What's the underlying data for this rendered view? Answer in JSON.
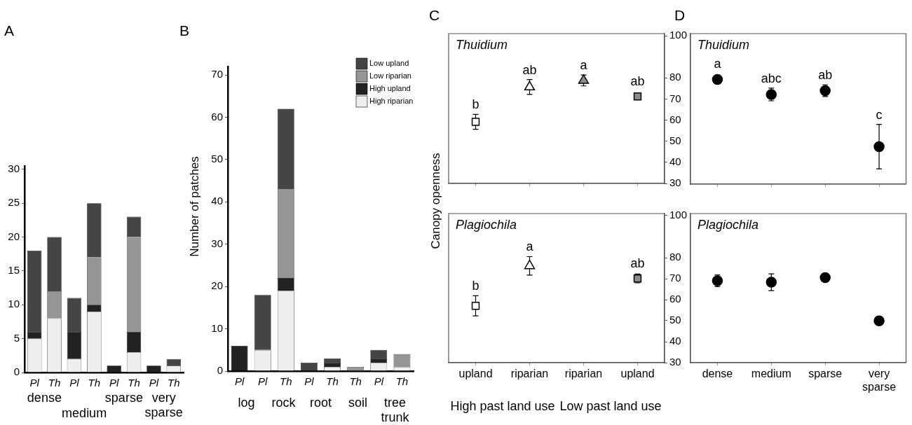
{
  "chart_data": [
    {
      "type": "bar",
      "title": "A",
      "stacked": true,
      "categories": [
        "Pl",
        "Th",
        "Pl",
        "Th",
        "Pl",
        "Th",
        "Pl",
        "Th"
      ],
      "series": [
        {
          "color": "#eeeeee",
          "values": [
            5,
            8,
            2,
            9,
            0,
            3,
            0,
            1
          ]
        },
        {
          "color": "#222222",
          "values": [
            1,
            0,
            4,
            1,
            1,
            3,
            1,
            0
          ]
        },
        {
          "color": "#959595",
          "values": [
            0,
            4,
            0,
            7,
            0,
            14,
            0,
            0
          ]
        },
        {
          "color": "#454545",
          "values": [
            12,
            8,
            5,
            8,
            0,
            3,
            0,
            1
          ]
        }
      ],
      "ylim": [
        0,
        30.5
      ],
      "yticks": [
        0,
        5,
        10,
        15,
        20,
        25,
        30
      ],
      "annotations": [
        "dense",
        "medium",
        "sparse",
        "very sparse"
      ]
    },
    {
      "type": "bar",
      "title": "B",
      "ylabel": "Number of patches",
      "stacked": true,
      "categories": [
        "Pl",
        "Pl",
        "Th",
        "Pl",
        "Th",
        "Th",
        "Pl",
        "Th"
      ],
      "series": [
        {
          "name": "High riparian",
          "color": "#eeeeee",
          "values": [
            0,
            5,
            19,
            0,
            1,
            0,
            2,
            1
          ]
        },
        {
          "name": "High upland",
          "color": "#222222",
          "values": [
            6,
            0,
            3,
            0,
            1,
            0,
            1,
            0
          ]
        },
        {
          "name": "Low riparian",
          "color": "#959595",
          "values": [
            0,
            0,
            21,
            0,
            0,
            1,
            0,
            3
          ]
        },
        {
          "name": "Low upland",
          "color": "#454545",
          "values": [
            0,
            13,
            19,
            2,
            1,
            0,
            2,
            0
          ]
        }
      ],
      "ylim": [
        0,
        72
      ],
      "yticks": [
        0,
        10,
        20,
        30,
        40,
        50,
        60,
        70
      ],
      "legend": "top right",
      "annotations": [
        "log",
        "rock",
        "root",
        "soil",
        "tree trunk"
      ]
    },
    {
      "type": "scatter",
      "title": "C",
      "subtitle": "Thuidium",
      "ylabel": "Canopy openness",
      "categories": [
        null,
        null,
        null,
        null
      ],
      "series": [
        {
          "marker": "square",
          "colors": [
            "#ffffff",
            null,
            null,
            "#8c8c8c"
          ],
          "values": [
            59.2,
            null,
            null,
            71.2
          ],
          "errors": [
            3.5,
            null,
            null,
            null
          ],
          "value_labels": [
            "b",
            null,
            null,
            "ab"
          ]
        },
        {
          "marker": "triangle",
          "colors": [
            null,
            "#ffffff",
            "#8c8c8c",
            null
          ],
          "values": [
            null,
            75.7,
            78.8,
            null
          ],
          "errors": [
            null,
            3.5,
            2.6,
            null
          ],
          "value_labels": [
            null,
            "ab",
            "a",
            null
          ]
        }
      ],
      "ylim": [
        30,
        101
      ],
      "yticks": [
        100,
        80,
        70,
        60,
        50,
        40,
        30
      ],
      "tick_labels": "y"
    },
    {
      "type": "scatter",
      "subtitle": "Plagiochila",
      "categories": [
        "upland",
        "riparian",
        "riparian",
        "upland"
      ],
      "series": [
        {
          "marker": "square",
          "colors": [
            "#ffffff",
            null,
            null,
            "#8c8c8c"
          ],
          "values": [
            57.1,
            null,
            null,
            70.1
          ],
          "errors": [
            4.8,
            null,
            null,
            2.1
          ],
          "value_labels": [
            "b",
            null,
            null,
            "ab"
          ]
        },
        {
          "marker": "triangle",
          "colors": [
            null,
            "#ffffff",
            null,
            null
          ],
          "values": [
            null,
            76.1,
            null,
            null
          ],
          "errors": [
            null,
            4.4,
            null,
            null
          ],
          "value_labels": [
            null,
            "a",
            null,
            null
          ]
        }
      ],
      "ylim": [
        30,
        101
      ],
      "yticks": [
        100,
        80,
        70,
        60,
        50,
        40,
        30
      ],
      "annotations": [
        "High past land use",
        "Low past land use"
      ]
    },
    {
      "type": "scatter",
      "title": "D",
      "subtitle": "Thuidium",
      "marker": "circle",
      "categories": [
        null,
        null,
        null,
        null
      ],
      "series": [
        {
          "color": "#000000",
          "values": [
            79.4,
            72.3,
            74.1,
            47.7
          ],
          "errors": [
            null,
            3,
            2.8,
            10.5
          ],
          "value_labels": [
            "a",
            "abc",
            "ab",
            "c"
          ]
        }
      ],
      "ylim": [
        30,
        101
      ],
      "tick_labels": false
    },
    {
      "type": "scatter",
      "subtitle": "Plagiochila",
      "marker": "circle",
      "categories": [
        "dense",
        "medium",
        "sparse",
        "very sparse"
      ],
      "series": [
        {
          "color": "#000000",
          "values": [
            69,
            68.3,
            70.5,
            49.9
          ],
          "errors": [
            2.8,
            4,
            null,
            null
          ]
        }
      ],
      "ylim": [
        30,
        101
      ],
      "tick_labels": "x"
    }
  ]
}
